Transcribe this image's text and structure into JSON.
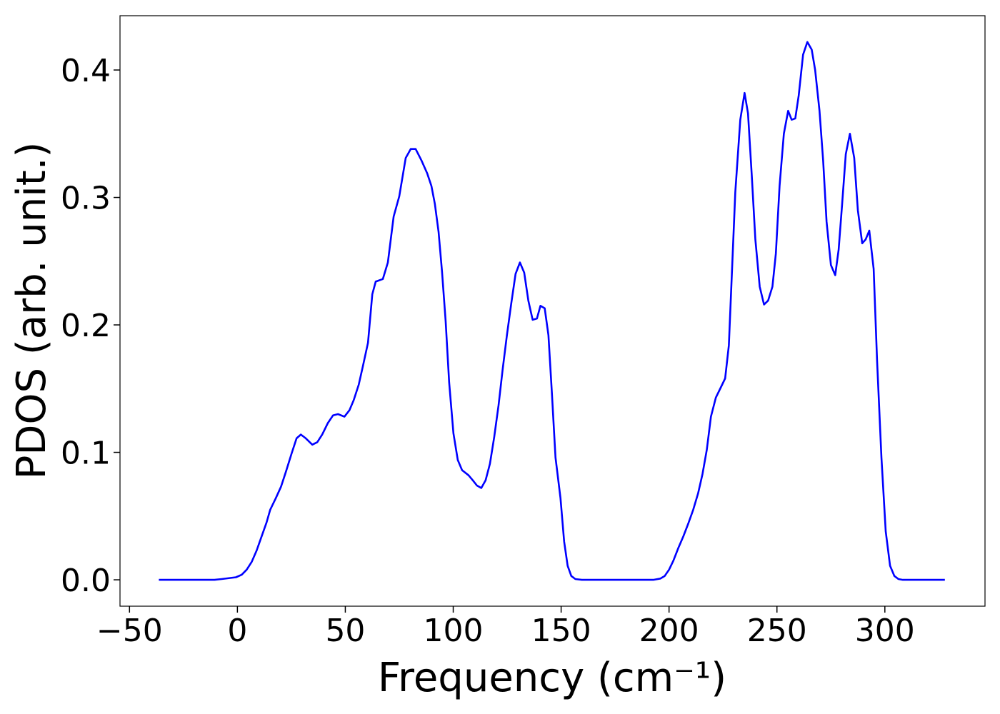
{
  "chart_data": {
    "type": "line",
    "xlabel": "Frequency (cm⁻¹)",
    "ylabel": "PDOS (arb. unit.)",
    "x": [
      -36.4,
      -10.6,
      -7.3,
      -0.7,
      2,
      4.3,
      6.6,
      8.9,
      11.2,
      13.5,
      15.2,
      17.8,
      20.2,
      22.5,
      25.1,
      27.4,
      29.4,
      31.7,
      34.7,
      37,
      39.3,
      41.9,
      44.3,
      46.6,
      49.6,
      51.9,
      53.9,
      56.2,
      58.2,
      60.5,
      62.5,
      64.1,
      67.4,
      69.7,
      72.4,
      75,
      78,
      80.3,
      82.6,
      85.3,
      87.9,
      89.9,
      91.5,
      93.2,
      94.8,
      96.5,
      98.1,
      100.1,
      102.1,
      104.1,
      107.1,
      109.1,
      111,
      113,
      115,
      117,
      119,
      121,
      122.9,
      124.9,
      126.9,
      128.9,
      130.9,
      132.9,
      134.8,
      136.8,
      138.8,
      140.4,
      142.4,
      144.1,
      145.7,
      147.4,
      149.7,
      151.4,
      153,
      154.7,
      156.6,
      159.6,
      192.7,
      196,
      198,
      200,
      202,
      204.3,
      206.6,
      208.9,
      211.2,
      213.5,
      215.5,
      217.5,
      219.4,
      221.7,
      224,
      226,
      227.7,
      229,
      230.7,
      233,
      235,
      236.6,
      238.3,
      240,
      242,
      244,
      245.9,
      247.9,
      249.5,
      251.2,
      253.2,
      255.2,
      256.8,
      258.5,
      260.1,
      262.1,
      264.1,
      266.1,
      267.7,
      269.7,
      271.4,
      273,
      275,
      277,
      278.6,
      280.2,
      281.9,
      283.8,
      285.8,
      287.5,
      289.5,
      291.1,
      292.8,
      294.8,
      296.4,
      298.4,
      300.4,
      302.4,
      304.4,
      306.3,
      308.3,
      327.8
    ],
    "values": [
      0,
      0,
      0.0006,
      0.002,
      0.004,
      0.008,
      0.014,
      0.023,
      0.034,
      0.045,
      0.055,
      0.064,
      0.073,
      0.085,
      0.099,
      0.111,
      0.114,
      0.111,
      0.106,
      0.108,
      0.114,
      0.123,
      0.129,
      0.13,
      0.128,
      0.133,
      0.141,
      0.153,
      0.168,
      0.186,
      0.224,
      0.234,
      0.236,
      0.249,
      0.285,
      0.301,
      0.331,
      0.338,
      0.338,
      0.329,
      0.319,
      0.309,
      0.295,
      0.273,
      0.242,
      0.203,
      0.155,
      0.115,
      0.094,
      0.086,
      0.082,
      0.078,
      0.074,
      0.072,
      0.078,
      0.091,
      0.112,
      0.137,
      0.165,
      0.192,
      0.217,
      0.24,
      0.249,
      0.241,
      0.219,
      0.204,
      0.205,
      0.215,
      0.213,
      0.192,
      0.147,
      0.096,
      0.064,
      0.03,
      0.011,
      0.003,
      0.0006,
      0,
      0,
      0.001,
      0.003,
      0.008,
      0.015,
      0.025,
      0.034,
      0.044,
      0.055,
      0.068,
      0.083,
      0.102,
      0.128,
      0.143,
      0.151,
      0.158,
      0.184,
      0.236,
      0.304,
      0.361,
      0.382,
      0.366,
      0.318,
      0.267,
      0.23,
      0.216,
      0.219,
      0.23,
      0.256,
      0.309,
      0.35,
      0.368,
      0.361,
      0.362,
      0.38,
      0.412,
      0.422,
      0.416,
      0.4,
      0.368,
      0.329,
      0.281,
      0.247,
      0.239,
      0.259,
      0.295,
      0.334,
      0.35,
      0.331,
      0.29,
      0.264,
      0.267,
      0.274,
      0.244,
      0.172,
      0.096,
      0.038,
      0.011,
      0.003,
      0.0006,
      0,
      0
    ],
    "color": "#0000ff",
    "xlim": [
      -54.4,
      346.4
    ],
    "xticks": [
      {
        "value": -50,
        "label": "−50"
      },
      0,
      50,
      100,
      150,
      200,
      250,
      300
    ],
    "ylim": [
      -0.0207,
      0.4426
    ],
    "yticks": [
      {
        "value": 0,
        "label": "0.0"
      },
      0.1,
      0.2,
      0.3,
      0.4
    ],
    "grid": false
  }
}
